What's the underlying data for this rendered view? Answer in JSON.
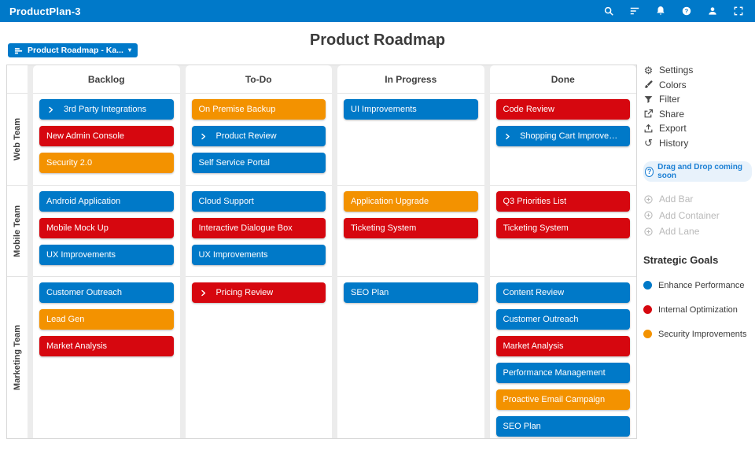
{
  "app": {
    "title": "ProductPlan-3"
  },
  "topbar": {
    "icons": [
      {
        "name": "search-icon"
      },
      {
        "name": "sort-lines-icon"
      },
      {
        "name": "bell-icon"
      },
      {
        "name": "help-icon"
      },
      {
        "name": "user-icon"
      },
      {
        "name": "fullscreen-icon"
      }
    ]
  },
  "header": {
    "title": "Product Roadmap",
    "dropdown": {
      "label": "Product Roadmap - Ka...",
      "caret": "▾"
    }
  },
  "colors": {
    "brand": "#0079C9",
    "blue": "#0079C8",
    "red": "#D6070F",
    "orange": "#F39200"
  },
  "board": {
    "columns": [
      "Backlog",
      "To-Do",
      "In Progress",
      "Done"
    ],
    "lanes": [
      {
        "name": "Web Team",
        "cells": [
          [
            {
              "label": "3rd Party Integrations",
              "color": "blue",
              "chevron": true
            },
            {
              "label": "New Admin Console",
              "color": "red"
            },
            {
              "label": "Security 2.0",
              "color": "orange"
            }
          ],
          [
            {
              "label": "On Premise Backup",
              "color": "orange"
            },
            {
              "label": "Product Review",
              "color": "blue",
              "chevron": true
            },
            {
              "label": "Self Service Portal",
              "color": "blue"
            }
          ],
          [
            {
              "label": "UI Improvements",
              "color": "blue"
            }
          ],
          [
            {
              "label": "Code Review",
              "color": "red"
            },
            {
              "label": "Shopping Cart Improveme...",
              "color": "blue",
              "chevron": true
            }
          ]
        ]
      },
      {
        "name": "Mobile Team",
        "cells": [
          [
            {
              "label": "Android Application",
              "color": "blue"
            },
            {
              "label": "Mobile Mock Up",
              "color": "red"
            },
            {
              "label": "UX Improvements",
              "color": "blue"
            }
          ],
          [
            {
              "label": "Cloud Support",
              "color": "blue"
            },
            {
              "label": "Interactive Dialogue Box",
              "color": "red"
            },
            {
              "label": "UX Improvements",
              "color": "blue"
            }
          ],
          [
            {
              "label": "Application Upgrade",
              "color": "orange"
            },
            {
              "label": "Ticketing System",
              "color": "red"
            }
          ],
          [
            {
              "label": "Q3 Priorities List",
              "color": "red"
            },
            {
              "label": "Ticketing System",
              "color": "red"
            }
          ]
        ]
      },
      {
        "name": "Marketing Team",
        "cells": [
          [
            {
              "label": "Customer Outreach",
              "color": "blue"
            },
            {
              "label": "Lead Gen",
              "color": "orange"
            },
            {
              "label": "Market Analysis",
              "color": "red"
            }
          ],
          [
            {
              "label": "Pricing Review",
              "color": "red",
              "chevron": true
            }
          ],
          [
            {
              "label": "SEO Plan",
              "color": "blue"
            }
          ],
          [
            {
              "label": "Content Review",
              "color": "blue"
            },
            {
              "label": "Customer Outreach",
              "color": "blue"
            },
            {
              "label": "Market Analysis",
              "color": "red"
            },
            {
              "label": "Performance Management",
              "color": "blue"
            },
            {
              "label": "Proactive Email Campaign",
              "color": "orange"
            },
            {
              "label": "SEO Plan",
              "color": "blue"
            }
          ]
        ]
      }
    ]
  },
  "side_panel": {
    "actions": [
      {
        "label": "Settings",
        "icon": "gear-icon"
      },
      {
        "label": "Colors",
        "icon": "brush-icon"
      },
      {
        "label": "Filter",
        "icon": "funnel-icon"
      },
      {
        "label": "Share",
        "icon": "share-icon"
      },
      {
        "label": "Export",
        "icon": "export-icon"
      },
      {
        "label": "History",
        "icon": "history-icon"
      }
    ],
    "notice": {
      "label": "Drag and Drop coming soon",
      "icon_glyph": "?"
    },
    "disabled_actions": [
      {
        "label": "Add Bar",
        "icon": "plus-circle-icon"
      },
      {
        "label": "Add Container",
        "icon": "plus-circle-icon"
      },
      {
        "label": "Add Lane",
        "icon": "plus-circle-icon"
      }
    ],
    "legend": {
      "title": "Strategic Goals",
      "items": [
        {
          "label": "Enhance Performance",
          "color": "blue"
        },
        {
          "label": "Internal Optimization",
          "color": "red"
        },
        {
          "label": "Security Improvements",
          "color": "orange"
        }
      ]
    }
  }
}
